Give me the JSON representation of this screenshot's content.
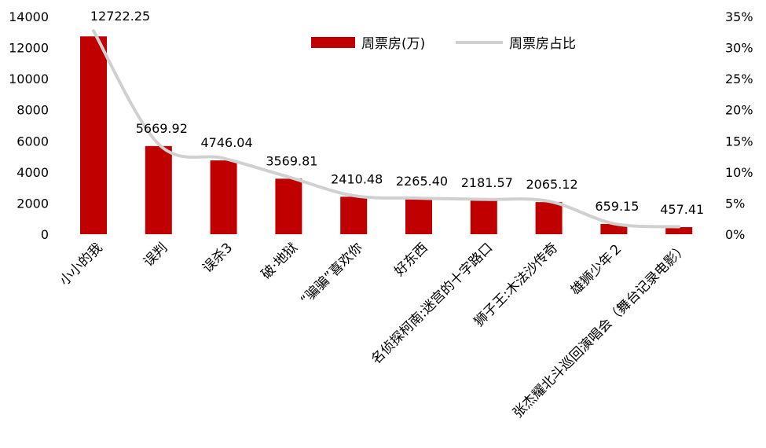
{
  "chart_data": {
    "type": "bar",
    "categories": [
      "小小的我",
      "误判",
      "误杀3",
      "破·地狱",
      "“骗骗”喜欢你",
      "好东西",
      "名侦探柯南:迷宫的十字路口",
      "狮子王:木法沙传奇",
      "雄狮少年２",
      "张杰耀北斗巡回演唱会（舞台记录电影）"
    ],
    "series": [
      {
        "name": "周票房(万)",
        "type": "bar",
        "axis": "left",
        "color": "#C00000",
        "values": [
          12722.25,
          5669.92,
          4746.04,
          3569.81,
          2410.48,
          2265.4,
          2181.57,
          2065.12,
          659.15,
          457.41
        ],
        "labels": [
          "12722.25",
          "5669.92",
          "4746.04",
          "3569.81",
          "2410.48",
          "2265.40",
          "2181.57",
          "2065.12",
          "659.15",
          "457.41"
        ]
      },
      {
        "name": "周票房占比",
        "type": "line",
        "axis": "right",
        "color": "#D0D0D0",
        "smooth": true,
        "values": [
          32.7,
          14.5,
          12.2,
          9.2,
          6.2,
          5.8,
          5.6,
          5.3,
          1.7,
          1.2
        ]
      }
    ],
    "y_left": {
      "ylim": [
        0,
        14000
      ],
      "ticks": [
        "0",
        "2000",
        "4000",
        "6000",
        "8000",
        "10000",
        "12000",
        "14000"
      ]
    },
    "y_right": {
      "ylim": [
        0,
        35
      ],
      "ticks": [
        "0%",
        "5%",
        "10%",
        "15%",
        "20%",
        "25%",
        "30%",
        "35%"
      ]
    },
    "legend_position": "top-center",
    "grid": false
  }
}
